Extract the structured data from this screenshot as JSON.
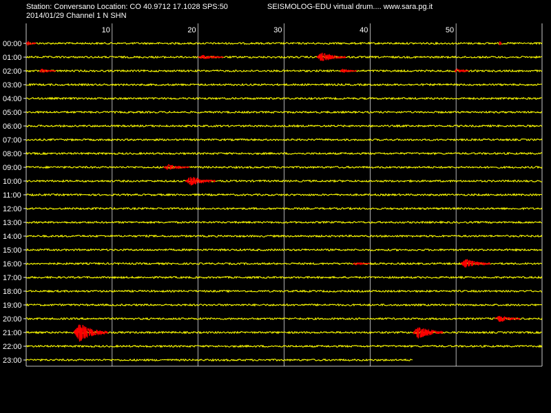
{
  "header": {
    "station_line": "Station: Conversano Location: CO 40.9712 17.1028 SPS:50",
    "title_line": "SEISMOLOG-EDU virtual drum.... www.sara.pg.it",
    "date_line": "2014/01/29  Channel 1 N SHN"
  },
  "colors": {
    "background": "#000000",
    "trace": "#ffff00",
    "event": "#ff0000",
    "grid": "#ffffff",
    "text": "#ffffff"
  },
  "chart_data": {
    "type": "line",
    "title": "SEISMOLOG-EDU virtual drum.... www.sara.pg.it",
    "subtitle": "2014/01/29  Channel 1 N SHN",
    "xlabel": "",
    "ylabel": "",
    "xlim": [
      0,
      60
    ],
    "x_unit": "minutes",
    "x_ticks": [
      "10",
      "20",
      "30",
      "40",
      "50"
    ],
    "x_tick_values": [
      10,
      20,
      30,
      40,
      50
    ],
    "grid": true,
    "rows": [
      "00:00",
      "01:00",
      "02:00",
      "03:00",
      "04:00",
      "05:00",
      "06:00",
      "07:00",
      "08:00",
      "09:00",
      "10:00",
      "11:00",
      "12:00",
      "13:00",
      "14:00",
      "15:00",
      "16:00",
      "17:00",
      "18:00",
      "19:00",
      "20:00",
      "21:00",
      "22:00",
      "23:00"
    ],
    "last_row_end_minute": 45,
    "events": [
      {
        "hour": 0,
        "start_min": 0.0,
        "end_min": 1.2,
        "amplitude": 3
      },
      {
        "hour": 0,
        "start_min": 55.0,
        "end_min": 55.3,
        "amplitude": 4
      },
      {
        "hour": 1,
        "start_min": 20.0,
        "end_min": 23.0,
        "amplitude": 3
      },
      {
        "hour": 1,
        "start_min": 33.8,
        "end_min": 37.2,
        "amplitude": 7
      },
      {
        "hour": 2,
        "start_min": 1.5,
        "end_min": 3.5,
        "amplitude": 3
      },
      {
        "hour": 2,
        "start_min": 36.5,
        "end_min": 38.5,
        "amplitude": 3
      },
      {
        "hour": 2,
        "start_min": 49.8,
        "end_min": 51.5,
        "amplitude": 3
      },
      {
        "hour": 9,
        "start_min": 16.0,
        "end_min": 19.0,
        "amplitude": 4
      },
      {
        "hour": 10,
        "start_min": 18.5,
        "end_min": 22.0,
        "amplitude": 7
      },
      {
        "hour": 16,
        "start_min": 38.0,
        "end_min": 40.0,
        "amplitude": 2
      },
      {
        "hour": 16,
        "start_min": 50.5,
        "end_min": 54.0,
        "amplitude": 7
      },
      {
        "hour": 20,
        "start_min": 54.5,
        "end_min": 57.5,
        "amplitude": 5
      },
      {
        "hour": 21,
        "start_min": 5.5,
        "end_min": 9.5,
        "amplitude": 14
      },
      {
        "hour": 21,
        "start_min": 45.0,
        "end_min": 48.5,
        "amplitude": 10
      }
    ]
  }
}
